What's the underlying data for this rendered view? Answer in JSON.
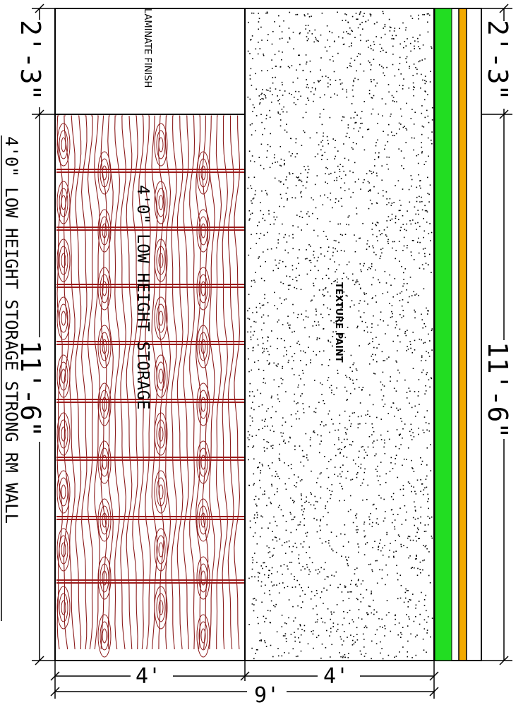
{
  "labels": {
    "laminate_finish": "LAMINATE FINISH",
    "texture_paint": "TEXTURE PAINT",
    "storage_inner": "4'0\" LOW HEIGHT STORAGE",
    "title": "4'0\" LOW HEIGHT STORAGE STRONG RM  WALL"
  },
  "dimensions": {
    "top_left": "2'-3\"",
    "top_right": "2'-3\"",
    "left_main": "11'-6\"",
    "right_main": "11'-6\"",
    "bottom_seg_1": "4'",
    "bottom_seg_2": "4'",
    "bottom_total": "9'"
  },
  "colors": {
    "wood": "#8b1a1a",
    "rails": "#9b1b1b",
    "green_band": "#22dd22",
    "orange_band": "#f2a900",
    "line": "#000000"
  }
}
